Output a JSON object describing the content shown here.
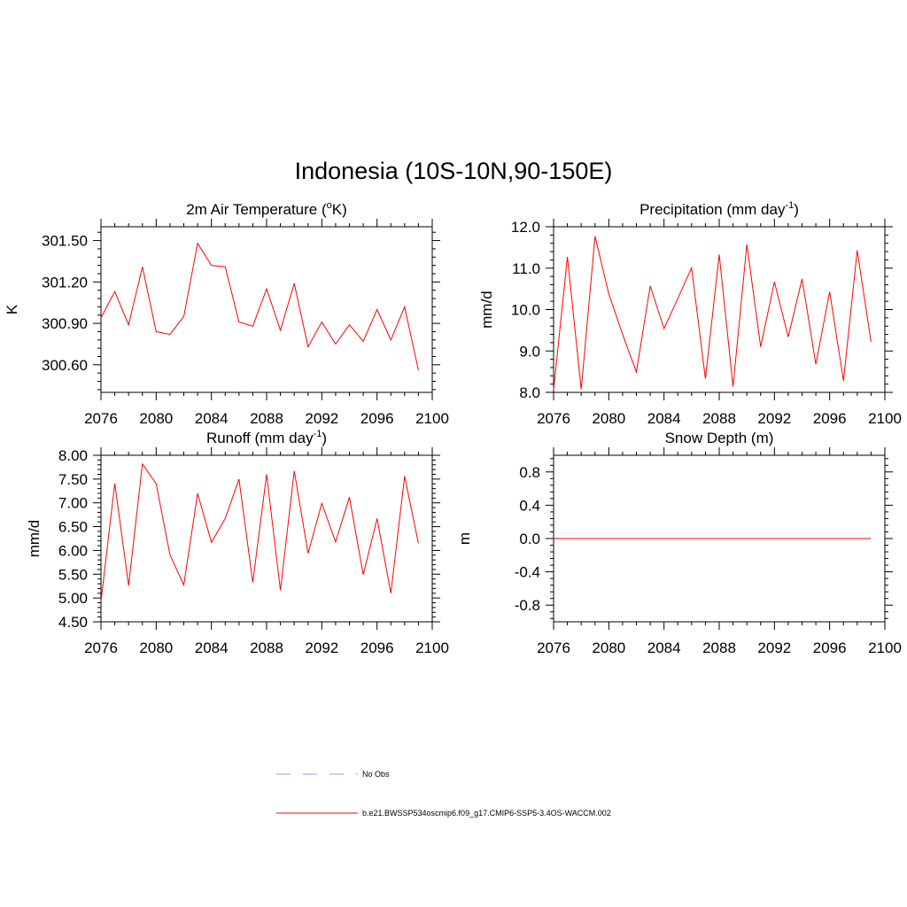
{
  "title": "Indonesia (10S-10N,90-150E)",
  "colors": {
    "series": "#ff0000",
    "obs": "#9999dd",
    "axis": "#000000"
  },
  "chart_data": [
    {
      "type": "line",
      "title": "2m Air Temperature (",
      "title_sup": "o",
      "title_tail": "K)",
      "ylabel": "K",
      "xlim": [
        2076,
        2100
      ],
      "ylim": [
        300.4,
        301.6
      ],
      "xticks": [
        "2076",
        "2080",
        "2084",
        "2088",
        "2092",
        "2096",
        "2100"
      ],
      "yticks": [
        "300.60",
        "300.90",
        "301.20",
        "301.50"
      ],
      "series": [
        {
          "name": "b.e21.BWSSP534oscmip6.f09_g17.CMIP6-SSP5-3.4OS-WACCM.002",
          "x": [
            2076,
            2077,
            2078,
            2079,
            2080,
            2081,
            2082,
            2083,
            2084,
            2085,
            2086,
            2087,
            2088,
            2089,
            2090,
            2091,
            2092,
            2093,
            2094,
            2095,
            2096,
            2097,
            2098,
            2099
          ],
          "y": [
            300.94,
            301.13,
            300.89,
            301.31,
            300.84,
            300.82,
            300.95,
            301.48,
            301.32,
            301.31,
            300.91,
            300.88,
            301.15,
            300.85,
            301.19,
            300.73,
            300.91,
            300.75,
            300.89,
            300.77,
            301.0,
            300.78,
            301.02,
            300.56
          ]
        }
      ]
    },
    {
      "type": "line",
      "title": "Precipitation (mm day",
      "title_sup": "-1",
      "title_tail": ")",
      "ylabel": "mm/d",
      "xlim": [
        2076,
        2100
      ],
      "ylim": [
        8.0,
        12.0
      ],
      "xticks": [
        "2076",
        "2080",
        "2084",
        "2088",
        "2092",
        "2096",
        "2100"
      ],
      "yticks": [
        "8.0",
        "9.0",
        "10.0",
        "11.0",
        "12.0"
      ],
      "series": [
        {
          "name": "b.e21.BWSSP534oscmip6.f09_g17.CMIP6-SSP5-3.4OS-WACCM.002",
          "x": [
            2076,
            2077,
            2078,
            2079,
            2080,
            2081,
            2082,
            2083,
            2084,
            2085,
            2086,
            2087,
            2088,
            2089,
            2090,
            2091,
            2092,
            2093,
            2094,
            2095,
            2096,
            2097,
            2098,
            2099
          ],
          "y": [
            8.06,
            11.27,
            8.07,
            11.77,
            10.38,
            9.4,
            8.49,
            10.57,
            9.54,
            10.27,
            11.01,
            8.33,
            11.33,
            8.14,
            11.57,
            9.1,
            10.67,
            9.34,
            10.74,
            8.68,
            10.43,
            8.28,
            11.43,
            9.22
          ]
        }
      ]
    },
    {
      "type": "line",
      "title": "Runoff (mm day",
      "title_sup": "-1",
      "title_tail": ")",
      "ylabel": "mm/d",
      "xlim": [
        2076,
        2100
      ],
      "ylim": [
        4.5,
        8.0
      ],
      "xticks": [
        "2076",
        "2080",
        "2084",
        "2088",
        "2092",
        "2096",
        "2100"
      ],
      "yticks": [
        "4.50",
        "5.00",
        "5.50",
        "6.00",
        "6.50",
        "7.00",
        "7.50",
        "8.00"
      ],
      "series": [
        {
          "name": "b.e21.BWSSP534oscmip6.f09_g17.CMIP6-SSP5-3.4OS-WACCM.002",
          "x": [
            2076,
            2077,
            2078,
            2079,
            2080,
            2081,
            2082,
            2083,
            2084,
            2085,
            2086,
            2087,
            2088,
            2089,
            2090,
            2091,
            2092,
            2093,
            2094,
            2095,
            2096,
            2097,
            2098,
            2099
          ],
          "y": [
            4.93,
            7.41,
            5.26,
            7.82,
            7.4,
            5.91,
            5.27,
            7.2,
            6.17,
            6.67,
            7.5,
            5.33,
            7.6,
            5.16,
            7.67,
            5.94,
            6.99,
            6.18,
            7.12,
            5.49,
            6.67,
            5.1,
            7.56,
            6.15
          ]
        }
      ]
    },
    {
      "type": "line",
      "title": "Snow Depth (m)",
      "title_sup": "",
      "title_tail": "",
      "ylabel": "m",
      "xlim": [
        2076,
        2100
      ],
      "ylim": [
        -1.0,
        1.0
      ],
      "xticks": [
        "2076",
        "2080",
        "2084",
        "2088",
        "2092",
        "2096",
        "2100"
      ],
      "yticks": [
        "-0.8",
        "-0.4",
        "0.0",
        "0.4",
        "0.8"
      ],
      "series": [
        {
          "name": "b.e21.BWSSP534oscmip6.f09_g17.CMIP6-SSP5-3.4OS-WACCM.002",
          "x": [
            2076,
            2077,
            2078,
            2079,
            2080,
            2081,
            2082,
            2083,
            2084,
            2085,
            2086,
            2087,
            2088,
            2089,
            2090,
            2091,
            2092,
            2093,
            2094,
            2095,
            2096,
            2097,
            2098,
            2099
          ],
          "y": [
            0,
            0,
            0,
            0,
            0,
            0,
            0,
            0,
            0,
            0,
            0,
            0,
            0,
            0,
            0,
            0,
            0,
            0,
            0,
            0,
            0,
            0,
            0,
            0
          ]
        }
      ]
    }
  ],
  "legend": [
    {
      "label": "No Obs",
      "style": "dashed"
    },
    {
      "label": "b.e21.BWSSP534oscmip6.f09_g17.CMIP6-SSP5-3.4OS-WACCM.002",
      "style": "solid"
    }
  ]
}
